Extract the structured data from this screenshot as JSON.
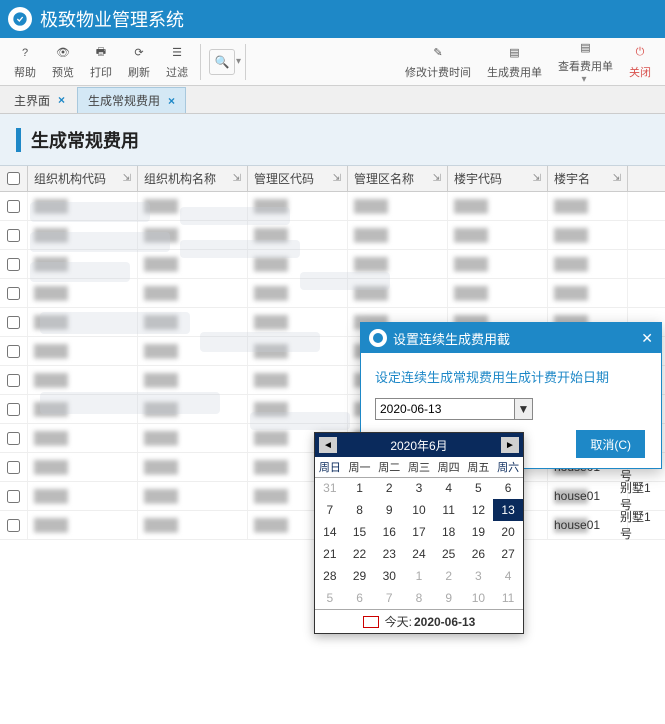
{
  "app": {
    "title": "极致物业管理系统"
  },
  "toolbar": {
    "help": "帮助",
    "preview": "预览",
    "print": "打印",
    "refresh": "刷新",
    "filter": "过滤",
    "modifyTime": "修改计费时间",
    "genFee": "生成费用单",
    "viewFee": "查看费用单",
    "close": "关闭"
  },
  "tabs": {
    "main": "主界面",
    "gen": "生成常规费用"
  },
  "page": {
    "title": "生成常规费用"
  },
  "grid": {
    "cols": [
      "组织机构代码",
      "组织机构名称",
      "管理区代码",
      "管理区名称",
      "楼宇代码",
      "楼宇名"
    ],
    "widths": [
      110,
      110,
      100,
      100,
      100,
      80
    ],
    "house": [
      "house01",
      "house01",
      "house01",
      "house01",
      "house01",
      "house01"
    ],
    "villa": [
      "别墅1号",
      "别墅1号",
      "别墅1号",
      "别墅1号",
      "别墅1号",
      "别墅1号"
    ]
  },
  "dialog": {
    "title": "设置连续生成费用截",
    "label": "设定连续生成常规费用生成计费开始日期",
    "date": "2020-06-13",
    "cancel": "取消(C)"
  },
  "calendar": {
    "title": "2020年6月",
    "dow": [
      "周日",
      "周一",
      "周二",
      "周三",
      "周四",
      "周五",
      "周六"
    ],
    "rows": [
      [
        {
          "d": 31,
          "dim": true
        },
        {
          "d": 1
        },
        {
          "d": 2
        },
        {
          "d": 3
        },
        {
          "d": 4
        },
        {
          "d": 5
        },
        {
          "d": 6
        }
      ],
      [
        {
          "d": 7
        },
        {
          "d": 8
        },
        {
          "d": 9
        },
        {
          "d": 10
        },
        {
          "d": 11
        },
        {
          "d": 12
        },
        {
          "d": 13,
          "sel": true
        }
      ],
      [
        {
          "d": 14
        },
        {
          "d": 15
        },
        {
          "d": 16
        },
        {
          "d": 17
        },
        {
          "d": 18
        },
        {
          "d": 19
        },
        {
          "d": 20
        }
      ],
      [
        {
          "d": 21
        },
        {
          "d": 22
        },
        {
          "d": 23
        },
        {
          "d": 24
        },
        {
          "d": 25
        },
        {
          "d": 26
        },
        {
          "d": 27
        }
      ],
      [
        {
          "d": 28
        },
        {
          "d": 29
        },
        {
          "d": 30
        },
        {
          "d": 1,
          "dim": true
        },
        {
          "d": 2,
          "dim": true
        },
        {
          "d": 3,
          "dim": true
        },
        {
          "d": 4,
          "dim": true
        }
      ],
      [
        {
          "d": 5,
          "dim": true
        },
        {
          "d": 6,
          "dim": true
        },
        {
          "d": 7,
          "dim": true
        },
        {
          "d": 8,
          "dim": true
        },
        {
          "d": 9,
          "dim": true
        },
        {
          "d": 10,
          "dim": true
        },
        {
          "d": 11,
          "dim": true
        }
      ]
    ],
    "todayLabel": "今天:",
    "today": "2020-06-13"
  }
}
